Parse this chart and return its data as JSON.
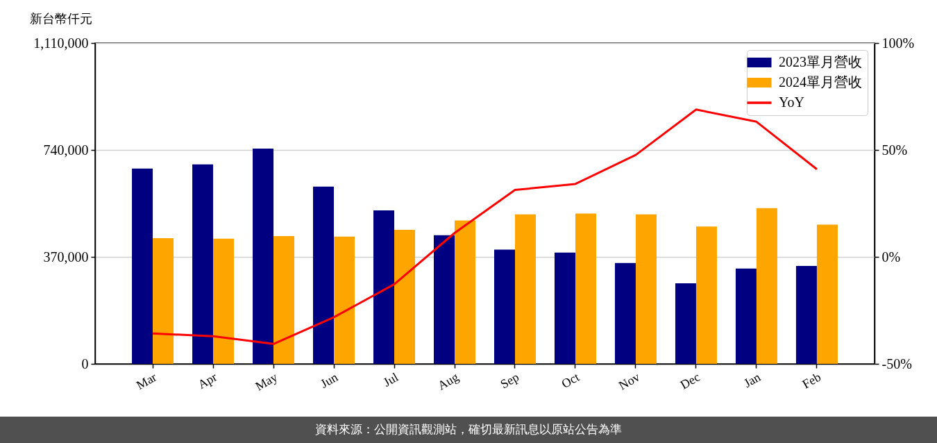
{
  "chart_data": {
    "type": "bar",
    "ylabel": "新台幣仟元",
    "categories": [
      "Mar",
      "Apr",
      "May",
      "Jun",
      "Jul",
      "Aug",
      "Sep",
      "Oct",
      "Nov",
      "Dec",
      "Jan",
      "Feb"
    ],
    "series": [
      {
        "name": "2023單月營收",
        "color": "#000080",
        "values": [
          676000,
          690000,
          745000,
          613000,
          531000,
          445000,
          395000,
          385000,
          349000,
          279000,
          330000,
          339000
        ]
      },
      {
        "name": "2024單月營收",
        "color": "#ffa500",
        "values": [
          435000,
          433000,
          442000,
          440000,
          464000,
          496000,
          517000,
          520000,
          517000,
          475000,
          539000,
          482000
        ]
      },
      {
        "name": "YoY",
        "type": "line",
        "axis": "y2",
        "color": "#ff0000",
        "values": [
          -35.8,
          -37.1,
          -40.7,
          -28.2,
          -12.8,
          11.2,
          31.3,
          34.1,
          47.7,
          68.9,
          63.2,
          41.0
        ]
      }
    ],
    "ylim": [
      0,
      1110000
    ],
    "yticks": [
      0,
      {
        "value": 370000,
        "label": "370,000"
      },
      {
        "value": 740000,
        "label": "740,000"
      },
      {
        "value": 1110000,
        "label": "1,110,000"
      }
    ],
    "y2lim": [
      -50,
      100
    ],
    "y2ticks": [
      {
        "value": -50,
        "label": "-50%"
      },
      {
        "value": 0,
        "label": "0%"
      },
      {
        "value": 50,
        "label": "50%"
      },
      {
        "value": 100,
        "label": "100%"
      }
    ],
    "grid": "y",
    "legend": "top right",
    "line_style": "solid",
    "annotations": [
      "資料來源：公開資訊觀測站，確切最新訊息以原站公告為準"
    ]
  }
}
